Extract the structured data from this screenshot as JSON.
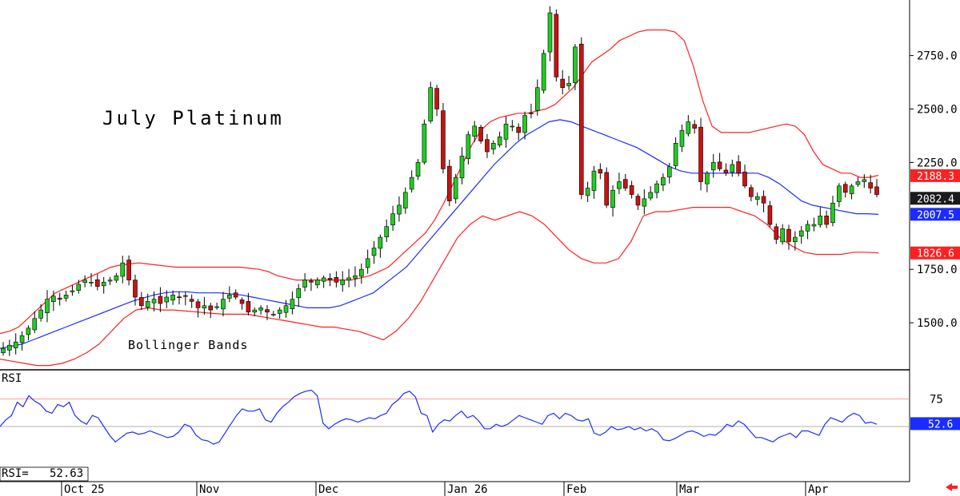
{
  "chart_data": [
    {
      "type": "candlestick",
      "title": "July Platinum",
      "annotation": "Bollinger Bands",
      "y_ticks": [
        "2750.0",
        "2500.0",
        "2250.0",
        "1750.0",
        "1500.0"
      ],
      "y_tick_values": [
        2750,
        2500,
        2250,
        1750,
        1500
      ],
      "ylim": [
        1280,
        3010
      ],
      "x_labels": [
        "Oct 25",
        "Nov",
        "Dec",
        "Jan 26",
        "Feb",
        "Mar",
        "Apr"
      ],
      "grid": false,
      "price_tags": [
        {
          "label": "2188.3",
          "value": 2188.3,
          "color": "#ff2020"
        },
        {
          "label": "2082.4",
          "value": 2082.4,
          "color": "#1a1a1a"
        },
        {
          "label": "2007.5",
          "value": 2007.5,
          "color": "#1a2cff"
        },
        {
          "label": "1826.6",
          "value": 1826.6,
          "color": "#ff2020"
        }
      ],
      "colors": {
        "up": "#22cc22",
        "down": "#cc1111",
        "upper_band": "#ff2020",
        "lower_band": "#ff2020",
        "middle_band": "#1a2cff"
      },
      "close_series": [
        1380,
        1395,
        1410,
        1440,
        1475,
        1520,
        1560,
        1610,
        1625,
        1610,
        1630,
        1650,
        1680,
        1700,
        1690,
        1670,
        1690,
        1700,
        1720,
        1780,
        1700,
        1620,
        1580,
        1600,
        1610,
        1590,
        1620,
        1630,
        1620,
        1625,
        1600,
        1570,
        1580,
        1560,
        1575,
        1610,
        1630,
        1620,
        1590,
        1550,
        1560,
        1570,
        1550,
        1540,
        1560,
        1580,
        1610,
        1660,
        1700,
        1690,
        1700,
        1710,
        1700,
        1690,
        1700,
        1710,
        1720,
        1750,
        1800,
        1850,
        1900,
        1950,
        2010,
        2050,
        2110,
        2180,
        2250,
        2430,
        2600,
        2500,
        2220,
        2070,
        2180,
        2280,
        2380,
        2420,
        2350,
        2300,
        2340,
        2370,
        2430,
        2420,
        2390,
        2470,
        2480,
        2600,
        2760,
        2950,
        2650,
        2600,
        2620,
        2790,
        2100,
        2130,
        2210,
        2200,
        2050,
        2120,
        2160,
        2130,
        2100,
        2050,
        2080,
        2110,
        2150,
        2180,
        2230,
        2340,
        2400,
        2440,
        2410,
        2160,
        2200,
        2250,
        2220,
        2200,
        2240,
        2200,
        2140,
        2090,
        2090,
        2060,
        1960,
        1890,
        1940,
        1880,
        1900,
        1930,
        1960,
        1960,
        2000,
        1960,
        2060,
        2140,
        2110,
        2140,
        2160,
        2170,
        2130,
        2100
      ],
      "upper_band": [
        1450,
        1460,
        1480,
        1520,
        1560,
        1600,
        1640,
        1660,
        1680,
        1700,
        1720,
        1740,
        1760,
        1770,
        1775,
        1780,
        1775,
        1770,
        1765,
        1760,
        1760,
        1760,
        1760,
        1760,
        1760,
        1760,
        1760,
        1755,
        1750,
        1740,
        1720,
        1710,
        1700,
        1700,
        1700,
        1700,
        1700,
        1700,
        1700,
        1710,
        1720,
        1740,
        1760,
        1800,
        1840,
        1880,
        1920,
        1980,
        2060,
        2150,
        2240,
        2330,
        2400,
        2440,
        2460,
        2470,
        2480,
        2480,
        2490,
        2500,
        2520,
        2560,
        2600,
        2660,
        2720,
        2750,
        2780,
        2820,
        2840,
        2860,
        2870,
        2870,
        2870,
        2860,
        2820,
        2700,
        2540,
        2420,
        2390,
        2390,
        2390,
        2390,
        2400,
        2410,
        2420,
        2430,
        2420,
        2380,
        2300,
        2240,
        2220,
        2200,
        2200,
        2180,
        2180,
        2190
      ],
      "middle_band": [
        1380,
        1390,
        1400,
        1420,
        1440,
        1460,
        1480,
        1500,
        1520,
        1540,
        1560,
        1580,
        1600,
        1615,
        1630,
        1640,
        1645,
        1645,
        1640,
        1640,
        1640,
        1635,
        1630,
        1620,
        1610,
        1600,
        1590,
        1580,
        1570,
        1570,
        1570,
        1580,
        1600,
        1620,
        1640,
        1680,
        1720,
        1760,
        1820,
        1880,
        1940,
        2000,
        2060,
        2120,
        2180,
        2240,
        2290,
        2340,
        2380,
        2410,
        2440,
        2450,
        2440,
        2420,
        2400,
        2380,
        2360,
        2340,
        2320,
        2290,
        2260,
        2230,
        2210,
        2200,
        2200,
        2200,
        2200,
        2200,
        2200,
        2200,
        2180,
        2150,
        2110,
        2070,
        2050,
        2040,
        2030,
        2020,
        2010,
        2010,
        2007
      ],
      "lower_band": [
        1330,
        1320,
        1310,
        1300,
        1300,
        1310,
        1330,
        1360,
        1400,
        1460,
        1520,
        1560,
        1570,
        1560,
        1560,
        1555,
        1550,
        1545,
        1540,
        1540,
        1540,
        1530,
        1520,
        1510,
        1500,
        1490,
        1480,
        1480,
        1470,
        1460,
        1440,
        1420,
        1460,
        1520,
        1600,
        1700,
        1800,
        1900,
        1960,
        2000,
        1980,
        2000,
        2020,
        2000,
        1960,
        1900,
        1840,
        1800,
        1780,
        1780,
        1800,
        1880,
        2000,
        2020,
        2020,
        2030,
        2040,
        2040,
        2040,
        2040,
        2020,
        2000,
        1960,
        1900,
        1860,
        1830,
        1820,
        1820,
        1820,
        1830,
        1830,
        1827
      ],
      "ohlc_note": "OHLC read approximately from candles; closes listed above"
    },
    {
      "type": "line",
      "title": "RSI",
      "ylim": [
        0,
        100
      ],
      "y_ticks": [
        "75"
      ],
      "reference_lines": [
        75,
        50
      ],
      "readout": {
        "label": "RSI=",
        "value": "52.63"
      },
      "tag": {
        "label": "52.6",
        "value": 52.6,
        "color": "#1a2cff"
      },
      "values": [
        50,
        56,
        60,
        72,
        68,
        78,
        73,
        70,
        64,
        62,
        70,
        68,
        72,
        60,
        55,
        52,
        60,
        58,
        50,
        42,
        36,
        40,
        44,
        45,
        43,
        44,
        46,
        44,
        42,
        40,
        41,
        45,
        52,
        50,
        42,
        38,
        37,
        34,
        36,
        44,
        52,
        60,
        66,
        64,
        64,
        66,
        56,
        54,
        62,
        68,
        72,
        77,
        80,
        82,
        83,
        78,
        53,
        48,
        52,
        55,
        57,
        56,
        54,
        56,
        58,
        57,
        60,
        62,
        70,
        74,
        80,
        82,
        77,
        62,
        60,
        45,
        52,
        56,
        55,
        60,
        64,
        58,
        60,
        55,
        48,
        48,
        52,
        50,
        52,
        56,
        60,
        58,
        56,
        54,
        52,
        60,
        62,
        57,
        62,
        60,
        56,
        55,
        57,
        44,
        42,
        45,
        50,
        47,
        48,
        50,
        47,
        49,
        46,
        48,
        45,
        38,
        37,
        39,
        42,
        45,
        46,
        44,
        41,
        43,
        42,
        46,
        52,
        50,
        55,
        52,
        46,
        40,
        40,
        38,
        36,
        40,
        42,
        44,
        40,
        46,
        46,
        44,
        42,
        52,
        58,
        56,
        54,
        59,
        62,
        60,
        53,
        54,
        52
      ]
    }
  ]
}
